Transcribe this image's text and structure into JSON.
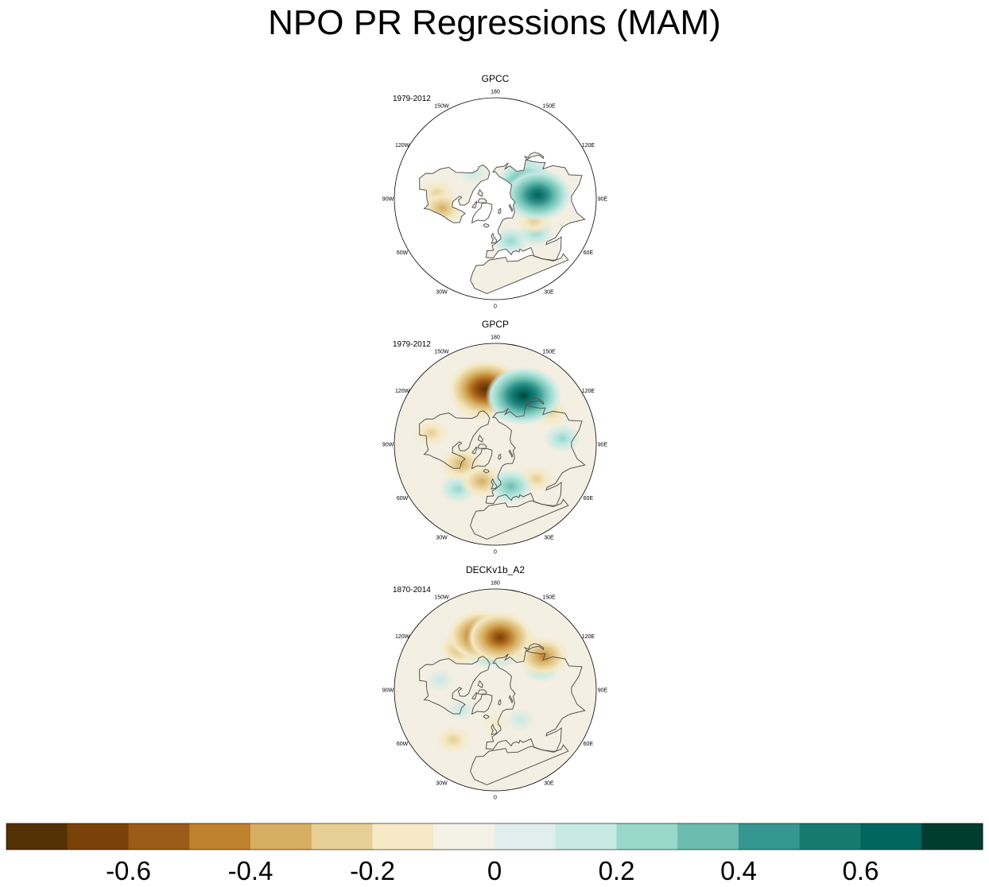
{
  "title": "NPO PR Regressions (MAM)",
  "colors": {
    "ocean_bg": "#f3efe2",
    "coast": "#555555",
    "ring": "#000000",
    "colorbar": [
      "#543005",
      "#7a4209",
      "#9b5a17",
      "#bf812d",
      "#d6ae62",
      "#e6ce95",
      "#f5e9c6",
      "#f4f1e6",
      "#e1efec",
      "#c7eae5",
      "#98d8cb",
      "#6cbcb0",
      "#35978f",
      "#167a71",
      "#01665e",
      "#003c30"
    ]
  },
  "chart_data": {
    "type": "polar-stereographic-contour",
    "colorbar": {
      "levels": [
        -0.7,
        -0.6,
        -0.5,
        -0.4,
        -0.3,
        -0.2,
        -0.1,
        0,
        0.1,
        0.2,
        0.3,
        0.4,
        0.5,
        0.6,
        0.7
      ],
      "tick_labels": [
        "-0.6",
        "-0.4",
        "-0.2",
        "0",
        "0.2",
        "0.4",
        "0.6"
      ]
    },
    "longitude_labels": [
      "180",
      "150E",
      "120E",
      "90E",
      "60E",
      "30E",
      "0",
      "30W",
      "60W",
      "90W",
      "120W",
      "150W"
    ],
    "panels": [
      {
        "name": "GPCC",
        "years": "1979-2012",
        "land_only": true,
        "anomalies": [
          {
            "lon": 115,
            "lat": 60,
            "value": 0.5
          },
          {
            "lon": 95,
            "lat": 52,
            "value": 0.6
          },
          {
            "lon": 130,
            "lat": 55,
            "value": 0.3
          },
          {
            "lon": 50,
            "lat": 43,
            "value": 0.2
          },
          {
            "lon": -95,
            "lat": 38,
            "value": -0.2
          },
          {
            "lon": -80,
            "lat": 42,
            "value": -0.3
          },
          {
            "lon": 60,
            "lat": 50,
            "value": -0.2
          },
          {
            "lon": 20,
            "lat": 50,
            "value": 0.2
          },
          {
            "lon": -140,
            "lat": 60,
            "value": 0.1
          }
        ]
      },
      {
        "name": "GPCP",
        "years": "1979-2012",
        "land_only": false,
        "anomalies": [
          {
            "lon": -170,
            "lat": 40,
            "value": -0.7
          },
          {
            "lon": -160,
            "lat": 48,
            "value": -0.4
          },
          {
            "lon": 150,
            "lat": 40,
            "value": 0.7
          },
          {
            "lon": 160,
            "lat": 50,
            "value": 0.4
          },
          {
            "lon": 175,
            "lat": 55,
            "value": 0.2
          },
          {
            "lon": -60,
            "lat": 55,
            "value": -0.3
          },
          {
            "lon": -20,
            "lat": 55,
            "value": -0.3
          },
          {
            "lon": -40,
            "lat": 38,
            "value": 0.2
          },
          {
            "lon": 20,
            "lat": 50,
            "value": 0.3
          },
          {
            "lon": 50,
            "lat": 42,
            "value": -0.2
          },
          {
            "lon": -100,
            "lat": 32,
            "value": -0.2
          },
          {
            "lon": 95,
            "lat": 30,
            "value": 0.2
          },
          {
            "lon": 120,
            "lat": 33,
            "value": -0.2
          }
        ]
      },
      {
        "name": "DECKv1b_A2",
        "years": "1870-2014",
        "land_only": false,
        "anomalies": [
          {
            "lon": -165,
            "lat": 40,
            "value": -0.6
          },
          {
            "lon": 175,
            "lat": 43,
            "value": -0.6
          },
          {
            "lon": -140,
            "lat": 42,
            "value": -0.3
          },
          {
            "lon": 150,
            "lat": 45,
            "value": -0.3
          },
          {
            "lon": -170,
            "lat": 55,
            "value": 0.3
          },
          {
            "lon": 170,
            "lat": 58,
            "value": 0.2
          },
          {
            "lon": 125,
            "lat": 38,
            "value": -0.4
          },
          {
            "lon": 115,
            "lat": 45,
            "value": 0.2
          },
          {
            "lon": -40,
            "lat": 32,
            "value": -0.2
          },
          {
            "lon": -60,
            "lat": 55,
            "value": 0.1
          },
          {
            "lon": 0,
            "lat": 60,
            "value": -0.1
          },
          {
            "lon": 40,
            "lat": 55,
            "value": 0.1
          },
          {
            "lon": -100,
            "lat": 40,
            "value": 0.1
          }
        ]
      }
    ]
  }
}
